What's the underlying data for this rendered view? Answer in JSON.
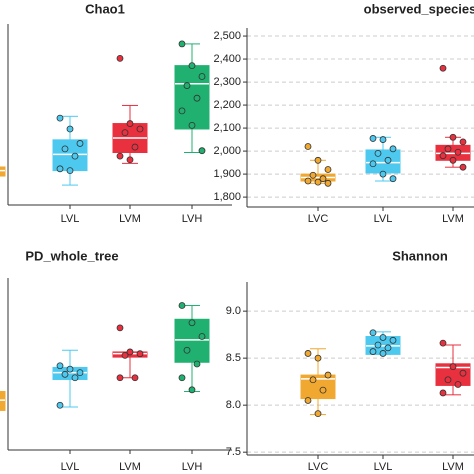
{
  "chart_data": [
    {
      "type": "box",
      "title": "Chao1",
      "categories": [
        null,
        "LVL",
        "LVM",
        "LVH"
      ],
      "colors": [
        "#f0a830",
        "#4dc9f0",
        "#e8303f",
        "#20b070"
      ],
      "ylim": [
        0,
        100
      ],
      "boxes": [
        {
          "low": 16,
          "q1": 16,
          "median": 19,
          "q3": 21,
          "high": 21,
          "points": [
            19
          ]
        },
        {
          "low": 11,
          "q1": 19,
          "median": 28,
          "q3": 36,
          "high": 49,
          "points": [
            48,
            42,
            34,
            31,
            27,
            20,
            19
          ]
        },
        {
          "low": 23,
          "q1": 29,
          "median": 37,
          "q3": 45,
          "high": 55,
          "points": [
            81,
            45,
            42,
            40,
            32,
            27,
            25
          ]
        },
        {
          "low": 29,
          "q1": 42,
          "median": 67,
          "q3": 77,
          "high": 89,
          "points": [
            89,
            77,
            71,
            66,
            59,
            52,
            44,
            30
          ]
        }
      ]
    },
    {
      "type": "box",
      "title": "observed_species",
      "categories": [
        "LVC",
        "LVL",
        "LVM"
      ],
      "colors": [
        "#f0a830",
        "#4dc9f0",
        "#e8303f"
      ],
      "ylim": [
        1757,
        2535
      ],
      "grid": true,
      "yticks": [
        {
          "value": 1800,
          "label": "1,800"
        },
        {
          "value": 1900,
          "label": "1,900"
        },
        {
          "value": 2000,
          "label": "2,000"
        },
        {
          "value": 2100,
          "label": "2,100"
        },
        {
          "value": 2200,
          "label": "2,200"
        },
        {
          "value": 2300,
          "label": "2,300"
        },
        {
          "value": 2400,
          "label": "2,400"
        },
        {
          "value": 2500,
          "label": "2,500"
        }
      ],
      "boxes": [
        {
          "low": 1860,
          "q1": 1870,
          "median": 1885,
          "q3": 1900,
          "high": 1960,
          "points": [
            2020,
            1960,
            1920,
            1895,
            1880,
            1870,
            1865,
            1860
          ]
        },
        {
          "low": 1870,
          "q1": 1905,
          "median": 1950,
          "q3": 2005,
          "high": 2060,
          "points": [
            2055,
            2050,
            2010,
            1990,
            1960,
            1945,
            1900,
            1880
          ]
        },
        {
          "low": 1930,
          "q1": 1960,
          "median": 1990,
          "q3": 2025,
          "high": 2060,
          "points": [
            2360,
            2060,
            2040,
            2010,
            1995,
            1980,
            1960,
            1930
          ]
        }
      ]
    },
    {
      "type": "box",
      "title": "PD_whole_tree",
      "categories": [
        null,
        "LVL",
        "LVM",
        "LVH"
      ],
      "colors": [
        "#f0a830",
        "#4dc9f0",
        "#e8303f",
        "#20b070"
      ],
      "ylim": [
        0,
        100
      ],
      "boxes": [
        {
          "low": 23,
          "q1": 23,
          "median": 29,
          "q3": 34,
          "high": 34,
          "points": [
            29
          ]
        },
        {
          "low": 25,
          "q1": 41,
          "median": 45,
          "q3": 48,
          "high": 58,
          "points": [
            49,
            47,
            45,
            44,
            42,
            26
          ]
        },
        {
          "low": 42,
          "q1": 54,
          "median": 56,
          "q3": 57,
          "high": 57,
          "points": [
            71,
            57,
            56,
            55,
            42,
            42
          ]
        },
        {
          "low": 34,
          "q1": 51,
          "median": 64,
          "q3": 76,
          "high": 84,
          "points": [
            84,
            74,
            66,
            58,
            50,
            42,
            35
          ]
        }
      ]
    },
    {
      "type": "box",
      "title": "Shannon",
      "categories": [
        "LVC",
        "LVL",
        "LVM"
      ],
      "colors": [
        "#f0a830",
        "#4dc9f0",
        "#e8303f"
      ],
      "ylim": [
        7.47,
        9.31
      ],
      "grid": true,
      "yticks": [
        {
          "value": 7.5,
          "label": "7.5"
        },
        {
          "value": 8,
          "label": "8.0"
        },
        {
          "value": 8.5,
          "label": "8.5"
        },
        {
          "value": 9,
          "label": "9.0"
        }
      ],
      "boxes": [
        {
          "low": 7.9,
          "q1": 8.07,
          "median": 8.28,
          "q3": 8.32,
          "high": 8.6,
          "points": [
            8.55,
            8.5,
            8.32,
            8.27,
            8.16,
            8.05,
            7.91
          ]
        },
        {
          "low": 8.54,
          "q1": 8.54,
          "median": 8.63,
          "q3": 8.73,
          "high": 8.78,
          "points": [
            8.77,
            8.72,
            8.69,
            8.64,
            8.61,
            8.57,
            8.55
          ]
        },
        {
          "low": 8.11,
          "q1": 8.21,
          "median": 8.4,
          "q3": 8.44,
          "high": 8.64,
          "points": [
            8.66,
            8.41,
            8.34,
            8.27,
            8.22,
            8.13
          ]
        }
      ]
    }
  ]
}
